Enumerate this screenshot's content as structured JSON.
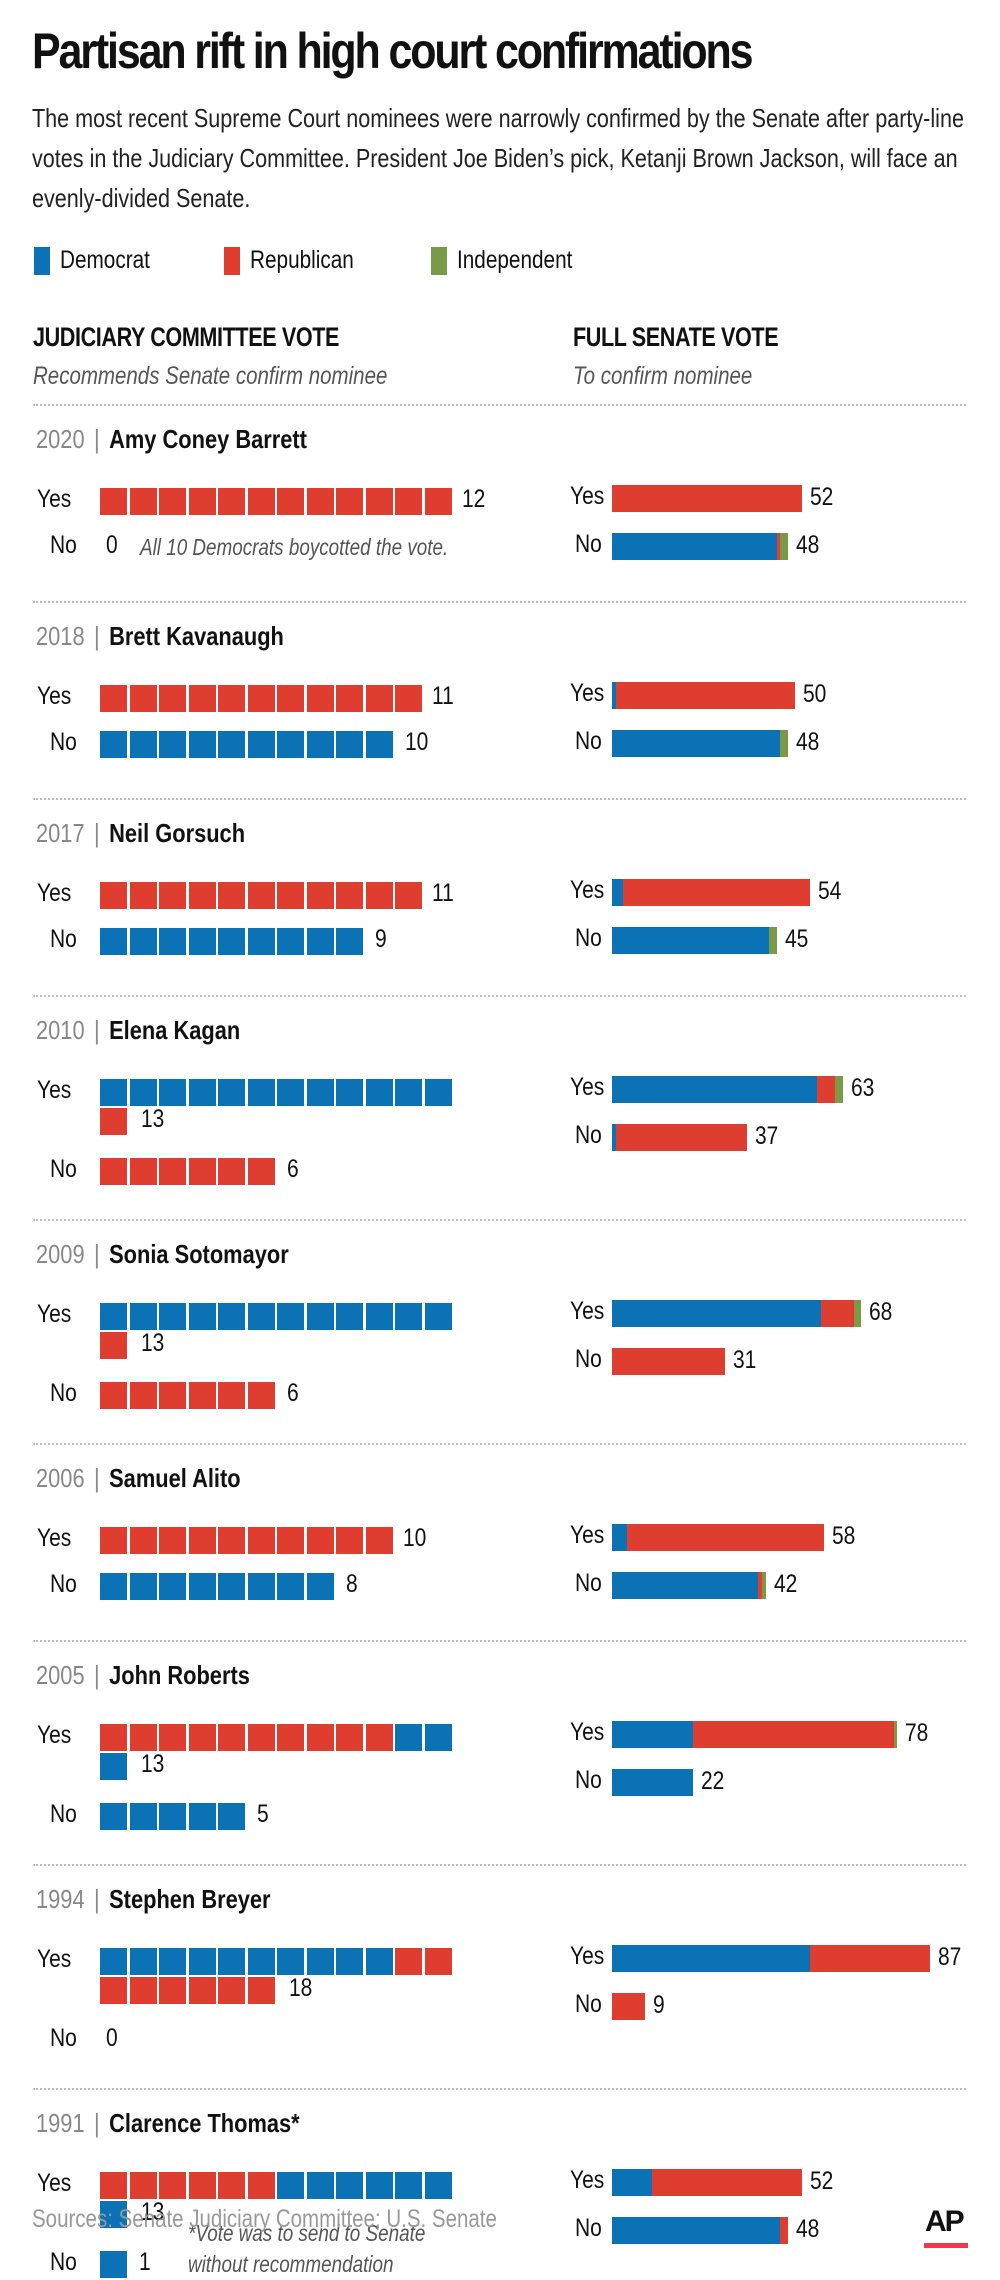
{
  "title": "Partisan rift in high court confirmations",
  "subtitle": "The most recent Supreme Court nominees were narrowly confirmed by the Senate after party-line votes in the Judiciary Committee. President Joe Biden’s pick, Ketanji Brown Jackson, will face an evenly-divided Senate.",
  "colors": {
    "D": "#0a72b5",
    "R": "#e03d31",
    "I": "#7a9a48"
  },
  "legend": [
    {
      "key": "D",
      "label": "Democrat"
    },
    {
      "key": "R",
      "label": "Republican"
    },
    {
      "key": "I",
      "label": "Independent"
    }
  ],
  "columns": {
    "committee": {
      "heading": "JUDICIARY COMMITTEE VOTE",
      "sub": "Recommends Senate confirm nominee"
    },
    "senate": {
      "heading": "FULL SENATE VOTE",
      "sub": "To confirm nominee"
    }
  },
  "row_labels": {
    "yes": "Yes",
    "no": "No"
  },
  "source": "Sources: Senate Judiciary Committee; U.S. Senate",
  "logo": "AP",
  "chart_data": {
    "type": "bar",
    "title": "Partisan rift in high court confirmations",
    "description": "Committee votes shown as unit squares (one per senator); full Senate votes shown as stacked horizontal bars by party.",
    "legend_placement": "top-left",
    "nominees": [
      {
        "year": "2020",
        "name": "Amy Coney Barrett",
        "sep": "|",
        "committee": {
          "yes": {
            "segments": [
              [
                "R",
                12
              ]
            ],
            "total": 12
          },
          "no": {
            "segments": [],
            "total": 0
          },
          "note": "All 10 Democrats boycotted the vote."
        },
        "senate": {
          "yes": {
            "segments": [
              [
                "R",
                52
              ]
            ],
            "total": 52
          },
          "no": {
            "segments": [
              [
                "D",
                45
              ],
              [
                "R",
                1
              ],
              [
                "I",
                2
              ]
            ],
            "total": 48
          }
        }
      },
      {
        "year": "2018",
        "name": "Brett Kavanaugh",
        "sep": "|",
        "committee": {
          "yes": {
            "segments": [
              [
                "R",
                11
              ]
            ],
            "total": 11
          },
          "no": {
            "segments": [
              [
                "D",
                10
              ]
            ],
            "total": 10
          }
        },
        "senate": {
          "yes": {
            "segments": [
              [
                "D",
                1
              ],
              [
                "R",
                49
              ]
            ],
            "total": 50
          },
          "no": {
            "segments": [
              [
                "D",
                46
              ],
              [
                "I",
                2
              ]
            ],
            "total": 48
          }
        }
      },
      {
        "year": "2017",
        "name": "Neil Gorsuch",
        "sep": "|",
        "committee": {
          "yes": {
            "segments": [
              [
                "R",
                11
              ]
            ],
            "total": 11
          },
          "no": {
            "segments": [
              [
                "D",
                9
              ]
            ],
            "total": 9
          }
        },
        "senate": {
          "yes": {
            "segments": [
              [
                "D",
                3
              ],
              [
                "R",
                51
              ]
            ],
            "total": 54
          },
          "no": {
            "segments": [
              [
                "D",
                43
              ],
              [
                "I",
                2
              ]
            ],
            "total": 45
          }
        }
      },
      {
        "year": "2010",
        "name": "Elena Kagan",
        "sep": "|",
        "committee": {
          "yes": {
            "segments": [
              [
                "D",
                12
              ],
              [
                "R",
                1
              ]
            ],
            "total": 13
          },
          "no": {
            "segments": [
              [
                "R",
                6
              ]
            ],
            "total": 6
          }
        },
        "senate": {
          "yes": {
            "segments": [
              [
                "D",
                56
              ],
              [
                "R",
                5
              ],
              [
                "I",
                2
              ]
            ],
            "total": 63
          },
          "no": {
            "segments": [
              [
                "D",
                1
              ],
              [
                "R",
                36
              ]
            ],
            "total": 37
          }
        }
      },
      {
        "year": "2009",
        "name": "Sonia Sotomayor",
        "sep": "|",
        "committee": {
          "yes": {
            "segments": [
              [
                "D",
                12
              ],
              [
                "R",
                1
              ]
            ],
            "total": 13
          },
          "no": {
            "segments": [
              [
                "R",
                6
              ]
            ],
            "total": 6
          }
        },
        "senate": {
          "yes": {
            "segments": [
              [
                "D",
                57
              ],
              [
                "R",
                9
              ],
              [
                "I",
                2
              ]
            ],
            "total": 68
          },
          "no": {
            "segments": [
              [
                "R",
                31
              ]
            ],
            "total": 31
          }
        }
      },
      {
        "year": "2006",
        "name": "Samuel Alito",
        "sep": "|",
        "committee": {
          "yes": {
            "segments": [
              [
                "R",
                10
              ]
            ],
            "total": 10
          },
          "no": {
            "segments": [
              [
                "D",
                8
              ]
            ],
            "total": 8
          }
        },
        "senate": {
          "yes": {
            "segments": [
              [
                "D",
                4
              ],
              [
                "R",
                54
              ]
            ],
            "total": 58
          },
          "no": {
            "segments": [
              [
                "D",
                40
              ],
              [
                "R",
                1
              ],
              [
                "I",
                1
              ]
            ],
            "total": 42
          }
        }
      },
      {
        "year": "2005",
        "name": "John Roberts",
        "sep": "|",
        "committee": {
          "yes": {
            "segments": [
              [
                "R",
                10
              ],
              [
                "D",
                3
              ]
            ],
            "total": 13
          },
          "no": {
            "segments": [
              [
                "D",
                5
              ]
            ],
            "total": 5
          }
        },
        "senate": {
          "yes": {
            "segments": [
              [
                "D",
                22
              ],
              [
                "R",
                55
              ],
              [
                "I",
                1
              ]
            ],
            "total": 78
          },
          "no": {
            "segments": [
              [
                "D",
                22
              ]
            ],
            "total": 22
          }
        }
      },
      {
        "year": "1994",
        "name": "Stephen Breyer",
        "sep": "|",
        "committee": {
          "yes": {
            "segments": [
              [
                "D",
                10
              ],
              [
                "R",
                8
              ]
            ],
            "total": 18
          },
          "no": {
            "segments": [],
            "total": 0
          }
        },
        "senate": {
          "yes": {
            "segments": [
              [
                "D",
                54
              ],
              [
                "R",
                33
              ]
            ],
            "total": 87
          },
          "no": {
            "segments": [
              [
                "R",
                9
              ]
            ],
            "total": 9
          }
        }
      },
      {
        "year": "1991",
        "name": "Clarence Thomas*",
        "sep": "|",
        "committee": {
          "yes": {
            "segments": [
              [
                "R",
                6
              ],
              [
                "D",
                7
              ]
            ],
            "total": 13
          },
          "no": {
            "segments": [
              [
                "D",
                1
              ]
            ],
            "total": 1
          },
          "note": "*Vote was to send to Senate\nwithout recommendation"
        },
        "senate": {
          "yes": {
            "segments": [
              [
                "D",
                11
              ],
              [
                "R",
                41
              ]
            ],
            "total": 52
          },
          "no": {
            "segments": [
              [
                "D",
                46
              ],
              [
                "R",
                2
              ]
            ],
            "total": 48
          }
        }
      }
    ]
  }
}
